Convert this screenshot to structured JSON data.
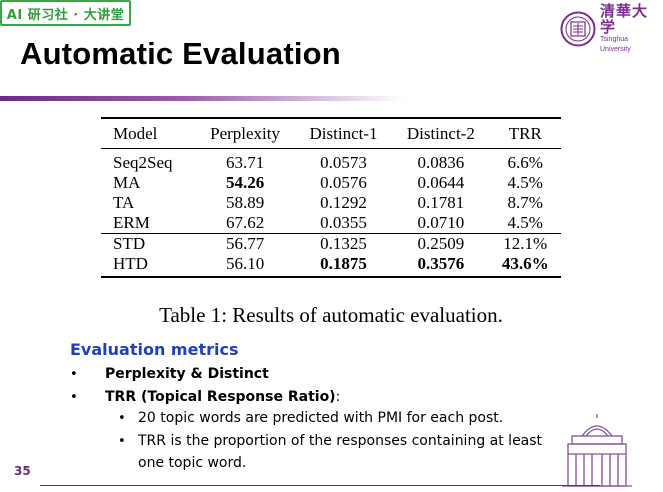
{
  "badge": {
    "text": "AI 研习社 · 大讲堂"
  },
  "logo": {
    "chinese": "清華大学",
    "english": "Tsinghua University"
  },
  "title": "Automatic Evaluation",
  "table": {
    "headers": [
      "Model",
      "Perplexity",
      "Distinct-1",
      "Distinct-2",
      "TRR"
    ],
    "rows": [
      [
        "Seq2Seq",
        "63.71",
        "0.0573",
        "0.0836",
        "6.6%"
      ],
      [
        "MA",
        "54.26",
        "0.0576",
        "0.0644",
        "4.5%"
      ],
      [
        "TA",
        "58.89",
        "0.1292",
        "0.1781",
        "8.7%"
      ],
      [
        "ERM",
        "67.62",
        "0.0355",
        "0.0710",
        "4.5%"
      ],
      [
        "STD",
        "56.77",
        "0.1325",
        "0.2509",
        "12.1%"
      ],
      [
        "HTD",
        "56.10",
        "0.1875",
        "0.3576",
        "43.6%"
      ]
    ]
  },
  "caption": "Table 1: Results of automatic evaluation.",
  "metrics": {
    "heading": "Evaluation metrics",
    "items": [
      {
        "bullet": "•",
        "label": "Perplexity & Distinct"
      },
      {
        "bullet": "•",
        "label": "TRR  (Topical Response Ratio)",
        "suffix": ":"
      }
    ],
    "subitems": [
      {
        "bullet": "•",
        "text": "20 topic words are predicted with PMI for each post."
      },
      {
        "bullet": "•",
        "text": "TRR is the proportion of the responses containing at least",
        "continuation": "one topic word."
      }
    ]
  },
  "page_number": "35",
  "colors": {
    "brand_purple": "#6d2a85",
    "heading_blue": "#1f3fbf",
    "badge_green": "#39a845"
  }
}
